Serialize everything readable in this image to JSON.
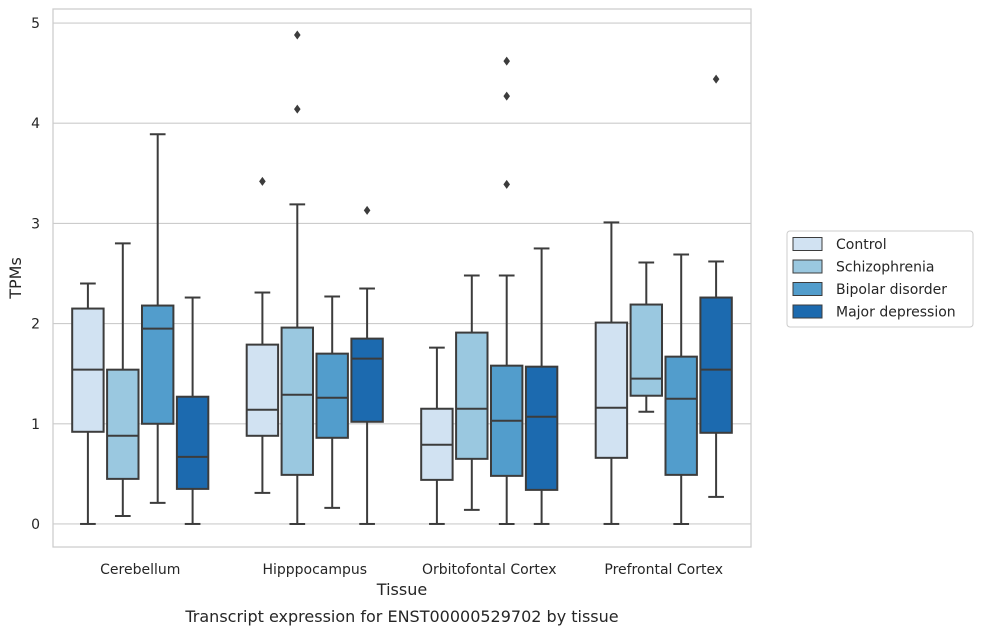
{
  "chart_data": {
    "type": "box",
    "title": "",
    "caption": "Transcript expression for ENST00000529702 by tissue",
    "xlabel": "Tissue",
    "ylabel": "TPMs",
    "ylim": [
      -0.23,
      5.14
    ],
    "yticks": [
      0,
      1,
      2,
      3,
      4,
      5
    ],
    "grid": "horizontal",
    "legend_position": "right",
    "categories": [
      "Cerebellum",
      "Hipppocampus",
      "Orbitofontal Cortex",
      "Prefrontal Cortex"
    ],
    "series": [
      {
        "name": "Control",
        "color": "#d1e2f2",
        "boxes": [
          {
            "whisker_low": 0.0,
            "q1": 0.92,
            "median": 1.54,
            "q3": 2.15,
            "whisker_high": 2.4,
            "outliers": []
          },
          {
            "whisker_low": 0.31,
            "q1": 0.88,
            "median": 1.14,
            "q3": 1.79,
            "whisker_high": 2.31,
            "outliers": [
              3.42
            ]
          },
          {
            "whisker_low": 0.0,
            "q1": 0.44,
            "median": 0.79,
            "q3": 1.15,
            "whisker_high": 1.76,
            "outliers": []
          },
          {
            "whisker_low": 0.0,
            "q1": 0.66,
            "median": 1.16,
            "q3": 2.01,
            "whisker_high": 3.01,
            "outliers": []
          }
        ]
      },
      {
        "name": "Schizophrenia",
        "color": "#9ac8e0",
        "boxes": [
          {
            "whisker_low": 0.08,
            "q1": 0.45,
            "median": 0.88,
            "q3": 1.54,
            "whisker_high": 2.8,
            "outliers": []
          },
          {
            "whisker_low": 0.0,
            "q1": 0.49,
            "median": 1.29,
            "q3": 1.96,
            "whisker_high": 3.19,
            "outliers": [
              4.14,
              4.88
            ]
          },
          {
            "whisker_low": 0.14,
            "q1": 0.65,
            "median": 1.15,
            "q3": 1.91,
            "whisker_high": 2.48,
            "outliers": []
          },
          {
            "whisker_low": 1.12,
            "q1": 1.28,
            "median": 1.45,
            "q3": 2.19,
            "whisker_high": 2.61,
            "outliers": []
          }
        ]
      },
      {
        "name": "Bipolar disorder",
        "color": "#529dcc",
        "boxes": [
          {
            "whisker_low": 0.21,
            "q1": 1.0,
            "median": 1.95,
            "q3": 2.18,
            "whisker_high": 3.89,
            "outliers": []
          },
          {
            "whisker_low": 0.16,
            "q1": 0.86,
            "median": 1.26,
            "q3": 1.7,
            "whisker_high": 2.27,
            "outliers": []
          },
          {
            "whisker_low": 0.0,
            "q1": 0.48,
            "median": 1.03,
            "q3": 1.58,
            "whisker_high": 2.48,
            "outliers": [
              3.39,
              4.27,
              4.62
            ]
          },
          {
            "whisker_low": 0.0,
            "q1": 0.49,
            "median": 1.25,
            "q3": 1.67,
            "whisker_high": 2.69,
            "outliers": []
          }
        ]
      },
      {
        "name": "Major depression",
        "color": "#1c6aaf",
        "boxes": [
          {
            "whisker_low": 0.0,
            "q1": 0.35,
            "median": 0.67,
            "q3": 1.27,
            "whisker_high": 2.26,
            "outliers": []
          },
          {
            "whisker_low": 0.0,
            "q1": 1.02,
            "median": 1.65,
            "q3": 1.85,
            "whisker_high": 2.35,
            "outliers": [
              3.13
            ]
          },
          {
            "whisker_low": 0.0,
            "q1": 0.34,
            "median": 1.07,
            "q3": 1.57,
            "whisker_high": 2.75,
            "outliers": []
          },
          {
            "whisker_low": 0.27,
            "q1": 0.91,
            "median": 1.54,
            "q3": 2.26,
            "whisker_high": 2.62,
            "outliers": [
              4.44
            ]
          }
        ]
      }
    ]
  }
}
